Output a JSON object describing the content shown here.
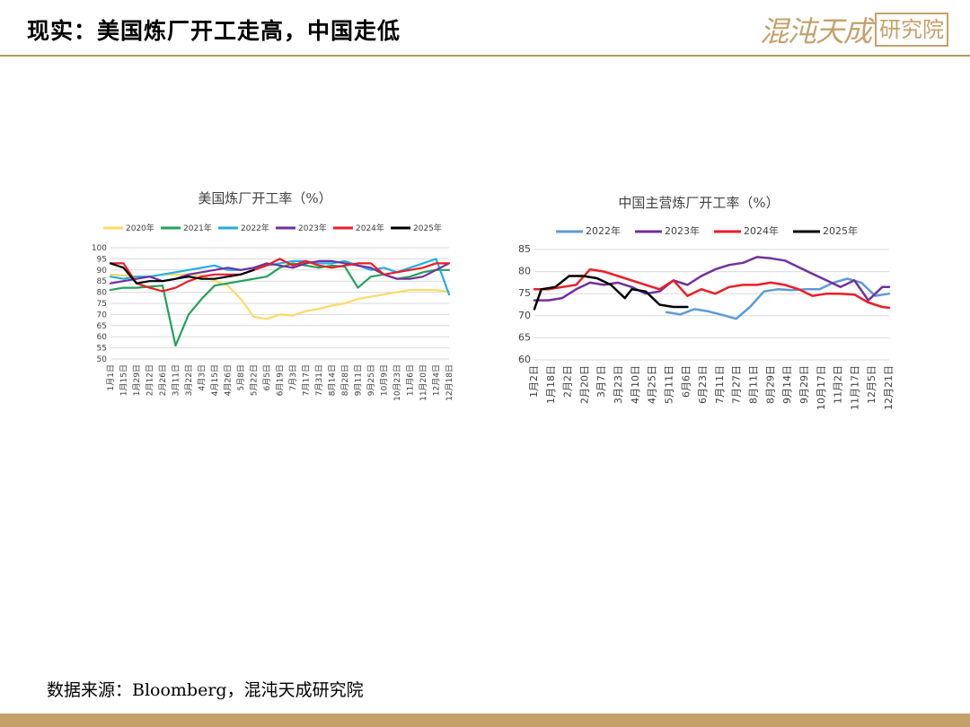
{
  "header": {
    "title": "现实：美国炼厂开工走高，中国走低",
    "logo_script": "混沌天成",
    "logo_box": "研究院"
  },
  "footer": {
    "source": "数据来源：Bloomberg，混沌天成研究院"
  },
  "colors": {
    "accent": "#c4a06a",
    "rule": "#b8965c"
  },
  "chart_data": [
    {
      "type": "line",
      "title": "美国炼厂开工率（%）",
      "ylim": [
        50,
        100
      ],
      "yticks": [
        50,
        55,
        60,
        65,
        70,
        75,
        80,
        85,
        90,
        95,
        100
      ],
      "grid": true,
      "legend_position": "top",
      "xticklabels": [
        "1月1日",
        "1月15日",
        "1月29日",
        "2月12日",
        "2月26日",
        "3月11日",
        "3月22日",
        "4月3日",
        "4月15日",
        "4月26日",
        "5月8日",
        "5月22日",
        "6月5日",
        "6月19日",
        "7月3日",
        "7月17日",
        "7月31日",
        "8月14日",
        "8月28日",
        "9月11日",
        "9月25日",
        "10月9日",
        "10月23日",
        "11月6日",
        "11月20日",
        "12月4日",
        "12月18日"
      ],
      "x_count": 53,
      "series": [
        {
          "name": "2020年",
          "color": "#ffd966",
          "x": [
            0,
            2,
            4,
            6,
            8,
            10,
            12,
            14,
            16,
            18,
            20,
            22,
            24,
            26,
            28,
            30,
            32,
            34,
            36,
            38,
            40,
            42,
            44,
            46,
            48,
            50,
            52
          ],
          "values": [
            88,
            87.5,
            87,
            87,
            88,
            88,
            88,
            87.5,
            85,
            83,
            77,
            69,
            68,
            70,
            69.5,
            71.5,
            72.5,
            74,
            75,
            77,
            78,
            79,
            80,
            81,
            81,
            81,
            80
          ]
        },
        {
          "name": "2021年",
          "color": "#21a35a",
          "x": [
            0,
            2,
            4,
            6,
            8,
            10,
            12,
            14,
            16,
            18,
            20,
            22,
            24,
            26,
            28,
            30,
            32,
            34,
            36,
            38,
            40,
            42,
            44,
            46,
            48,
            50,
            52
          ],
          "values": [
            81,
            82,
            82,
            82.5,
            83,
            56,
            70,
            77,
            83,
            84,
            85,
            86,
            87,
            91,
            93,
            92,
            91,
            92,
            91.5,
            82,
            87,
            88,
            86,
            87,
            89,
            90,
            90
          ]
        },
        {
          "name": "2022年",
          "color": "#22aee3",
          "x": [
            0,
            2,
            4,
            6,
            8,
            10,
            12,
            14,
            16,
            18,
            20,
            22,
            24,
            26,
            28,
            30,
            32,
            34,
            36,
            38,
            40,
            42,
            44,
            46,
            48,
            50,
            52
          ],
          "values": [
            87,
            86,
            87,
            87,
            88,
            89,
            90,
            91,
            92,
            90,
            90,
            91,
            92,
            93,
            94,
            94,
            93,
            93,
            94,
            92,
            90,
            91,
            89,
            91,
            93,
            95,
            79
          ]
        },
        {
          "name": "2023年",
          "color": "#7030a0",
          "x": [
            0,
            2,
            4,
            6,
            8,
            10,
            12,
            14,
            16,
            18,
            20,
            22,
            24,
            26,
            28,
            30,
            32,
            34,
            36,
            38,
            40,
            42,
            44,
            46,
            48,
            50,
            52
          ],
          "values": [
            84,
            85,
            86,
            87,
            85,
            86,
            88,
            89,
            90,
            91,
            90,
            91,
            93,
            92,
            91,
            93,
            94,
            94,
            93,
            92,
            91,
            88,
            86,
            86,
            87,
            90,
            93
          ]
        },
        {
          "name": "2024年",
          "color": "#ee1c25",
          "x": [
            0,
            2,
            4,
            6,
            8,
            10,
            12,
            14,
            16,
            18,
            20,
            22,
            24,
            26,
            28,
            30,
            32,
            34,
            36,
            38,
            40,
            42,
            44,
            46,
            48,
            50,
            52
          ],
          "values": [
            93,
            93,
            84,
            82,
            80.5,
            82,
            85,
            87,
            88,
            88,
            88,
            90,
            92,
            95,
            92,
            94,
            92,
            91,
            92,
            93,
            93,
            88,
            89,
            90,
            91,
            93,
            93
          ]
        },
        {
          "name": "2025年",
          "color": "#000000",
          "x": [
            0,
            2,
            4,
            6,
            8,
            10,
            12,
            14,
            16,
            18,
            20,
            22
          ],
          "values": [
            93,
            91,
            84,
            85,
            85,
            86,
            87,
            86,
            86,
            87,
            88,
            90
          ]
        }
      ]
    },
    {
      "type": "line",
      "title": "中国主营炼厂开工率（%）",
      "ylim": [
        60,
        85
      ],
      "yticks": [
        60,
        65,
        70,
        75,
        80,
        85
      ],
      "grid": true,
      "legend_position": "top",
      "xticklabels": [
        "1月2日",
        "1月18日",
        "2月2日",
        "2月20日",
        "3月7日",
        "3月23日",
        "4月10日",
        "4月25日",
        "5月11日",
        "6月6日",
        "6月23日",
        "7月11日",
        "7月27日",
        "8月11日",
        "8月29日",
        "9月14日",
        "9月29日",
        "10月17日",
        "11月2日",
        "11月17日",
        "12月5日",
        "12月21日"
      ],
      "x_count": 52,
      "series": [
        {
          "name": "2022年",
          "color": "#5b9bd5",
          "x": [
            19,
            21,
            23,
            25,
            27,
            29,
            31,
            33,
            35,
            37,
            39,
            41,
            43,
            45,
            47,
            49,
            51
          ],
          "values": [
            70.8,
            70.3,
            71.5,
            71,
            70.2,
            69.3,
            72,
            75.5,
            76,
            75.8,
            76,
            76,
            77.5,
            78.4,
            77.5,
            74.5,
            75
          ]
        },
        {
          "name": "2023年",
          "color": "#7030a0",
          "x": [
            0,
            2,
            4,
            6,
            8,
            10,
            12,
            14,
            16,
            18,
            20,
            22,
            24,
            26,
            28,
            30,
            32,
            34,
            36,
            38,
            40,
            42,
            44,
            46,
            48,
            50,
            51
          ],
          "values": [
            73.5,
            73.5,
            74,
            76,
            77.5,
            77,
            77.5,
            76.5,
            75,
            75.5,
            78,
            77,
            79,
            80.5,
            81.5,
            82,
            83.3,
            83,
            82.5,
            81,
            79.5,
            78,
            76.5,
            78,
            73.5,
            76.5,
            76.5
          ]
        },
        {
          "name": "2024年",
          "color": "#ee1c25",
          "x": [
            0,
            2,
            4,
            6,
            8,
            10,
            12,
            14,
            16,
            18,
            20,
            22,
            24,
            26,
            28,
            30,
            32,
            34,
            36,
            38,
            40,
            42,
            44,
            46,
            48,
            50,
            51
          ],
          "values": [
            76,
            76,
            76.5,
            77,
            80.5,
            80,
            79,
            78,
            77,
            76,
            78,
            74.5,
            76,
            75,
            76.5,
            77,
            77,
            77.5,
            77,
            76,
            74.5,
            75,
            75,
            74.8,
            73,
            72,
            71.8
          ]
        },
        {
          "name": "2025年",
          "color": "#000000",
          "x": [
            0,
            1,
            3,
            5,
            7,
            9,
            11,
            13,
            14,
            16,
            18,
            20,
            21,
            22
          ],
          "values": [
            71.5,
            76,
            76.5,
            79,
            79,
            78.5,
            77,
            74,
            76,
            75.5,
            72.5,
            72,
            72,
            72
          ]
        }
      ]
    }
  ]
}
